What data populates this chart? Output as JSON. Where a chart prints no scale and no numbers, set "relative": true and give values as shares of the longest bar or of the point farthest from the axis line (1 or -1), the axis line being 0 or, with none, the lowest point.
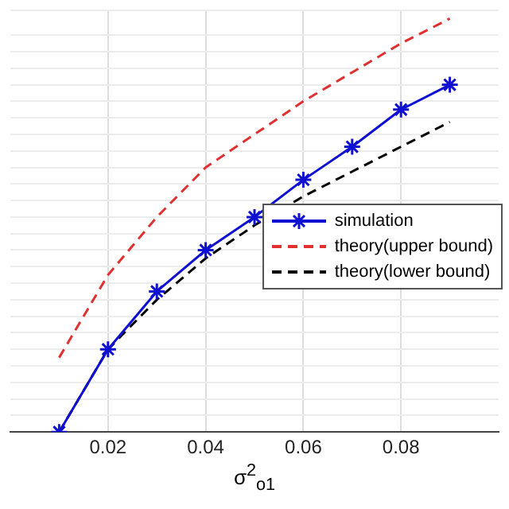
{
  "chart_data": {
    "type": "line",
    "xlabel": "σ$^{2}$$_{o1}$",
    "relative": true,
    "x": [
      0.01,
      0.02,
      0.03,
      0.04,
      0.05,
      0.06,
      0.07,
      0.08,
      0.09
    ],
    "xlim": [
      0,
      0.1
    ],
    "xticks": [
      0.02,
      0.04,
      0.06,
      0.08
    ],
    "grid": true,
    "legend": "right",
    "series": [
      {
        "name": "simulation",
        "color": "#1010d0",
        "marker": "cross",
        "line_style": "solid",
        "values": [
          0,
          0.2,
          0.34,
          0.44,
          0.52,
          0.61,
          0.69,
          0.78,
          0.84
        ]
      },
      {
        "name": "theory(upper bound)",
        "color": "#e03030",
        "marker": "none",
        "line_style": "dashed",
        "values": [
          0.18,
          0.38,
          0.52,
          0.64,
          0.72,
          0.8,
          0.87,
          0.94,
          1
        ]
      },
      {
        "name": "theory(lower bound)",
        "color": "#000000",
        "marker": "none",
        "line_style": "dashed",
        "values": [
          0,
          0.2,
          0.32,
          0.42,
          0.5,
          0.57,
          0.63,
          0.69,
          0.75
        ]
      }
    ]
  }
}
